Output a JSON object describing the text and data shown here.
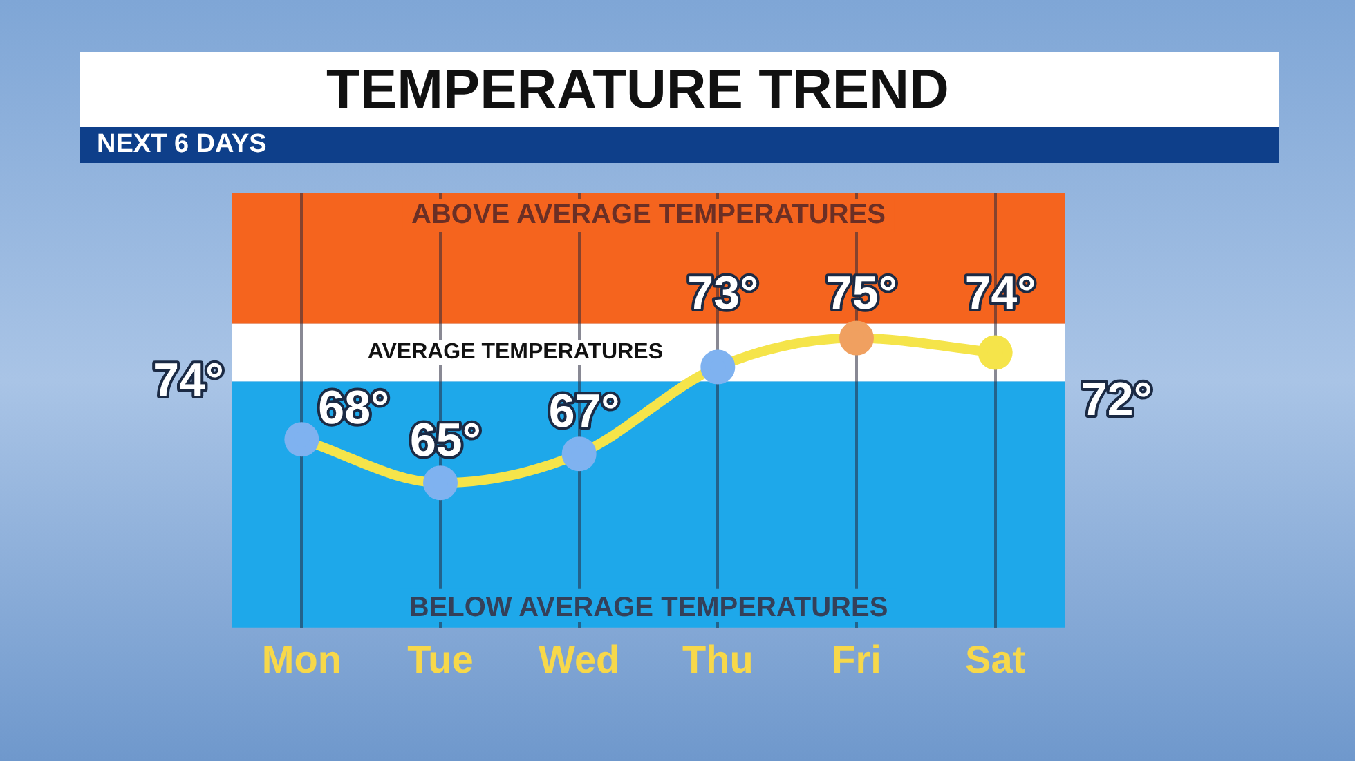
{
  "chart_data": {
    "type": "line",
    "title": "TEMPERATURE TREND",
    "subtitle": "NEXT 6 DAYS",
    "categories": [
      "Mon",
      "Tue",
      "Wed",
      "Thu",
      "Fri",
      "Sat"
    ],
    "series": [
      {
        "color": "#f5e44a",
        "colors": [
          "#7fb2f0",
          "#7fb2f0",
          "#7fb2f0",
          "#7fb2f0",
          "#f0a060",
          "#f5e44a"
        ],
        "values": [
          68,
          65,
          67,
          73,
          75,
          74
        ],
        "value_labels": [
          "68°",
          "65°",
          "67°",
          "73°",
          "75°",
          "74°"
        ]
      }
    ],
    "ylim": [
      55,
      85
    ],
    "tick_labels": "x",
    "grid": "x",
    "marker": "circle",
    "line_style": "solid",
    "legend": false,
    "bands": [
      {
        "axis": "y",
        "from": 76,
        "to": 85,
        "label": "ABOVE AVERAGE TEMPERATURES",
        "color": "#f5641e"
      },
      {
        "axis": "y",
        "from": 72,
        "to": 76,
        "label": "AVERAGE TEMPERATURES",
        "color": "#ffffff"
      },
      {
        "axis": "y",
        "from": 55,
        "to": 72,
        "label": "BELOW AVERAGE TEMPERATURES",
        "color": "#1ea8ea"
      }
    ],
    "annotations": [
      "74°",
      "72°"
    ]
  }
}
